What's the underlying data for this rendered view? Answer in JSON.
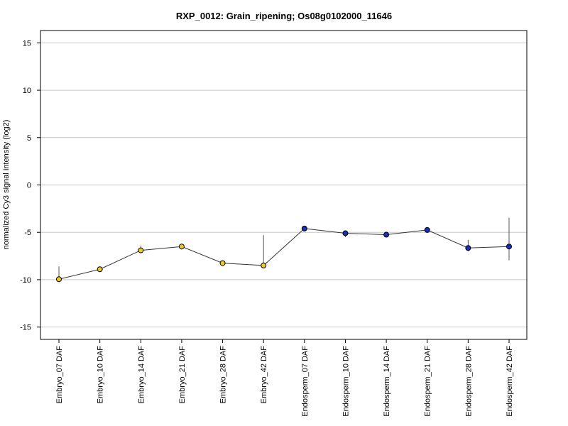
{
  "chart_data": {
    "type": "line",
    "title": "RXP_0012: Grain_ripening; Os08g0102000_11646",
    "xlabel": "",
    "ylabel": "normalized Cy3 signal intensity (log2)",
    "ylim": [
      -16.3,
      16.3
    ],
    "yticks": [
      -15,
      -10,
      -5,
      0,
      5,
      10,
      15
    ],
    "grid": "horizontal",
    "categories": [
      "Embryo_07 DAF",
      "Embryo_10 DAF",
      "Embryo_14 DAF",
      "Embryo_21 DAF",
      "Embryo_28 DAF",
      "Embryo_42 DAF",
      "Endosperm_07 DAF",
      "Endosperm_10 DAF",
      "Endosperm_14 DAF",
      "Endosperm_21 DAF",
      "Endosperm_28 DAF",
      "Endosperm_42 DAF"
    ],
    "values": [
      -9.95,
      -8.9,
      -6.9,
      -6.5,
      -8.25,
      -8.5,
      -4.6,
      -5.1,
      -5.25,
      -4.75,
      -6.65,
      -6.5
    ],
    "error_low": [
      -10.1,
      -9.0,
      -7.0,
      -6.6,
      -8.5,
      -8.6,
      -4.7,
      -5.5,
      -5.3,
      -4.8,
      -7.0,
      -7.95
    ],
    "error_high": [
      -8.6,
      -8.8,
      -6.4,
      -6.4,
      -8.1,
      -5.3,
      -4.5,
      -4.95,
      -5.15,
      -4.7,
      -5.8,
      -3.45
    ],
    "point_colors": [
      "#e8cc2a",
      "#e8cc2a",
      "#e8cc2a",
      "#e8cc2a",
      "#e8cc2a",
      "#e8cc2a",
      "#1830b8",
      "#1830b8",
      "#1830b8",
      "#1830b8",
      "#1830b8",
      "#1830b8"
    ],
    "line_color": "#333333",
    "grid_color": "#c8c8c8"
  }
}
